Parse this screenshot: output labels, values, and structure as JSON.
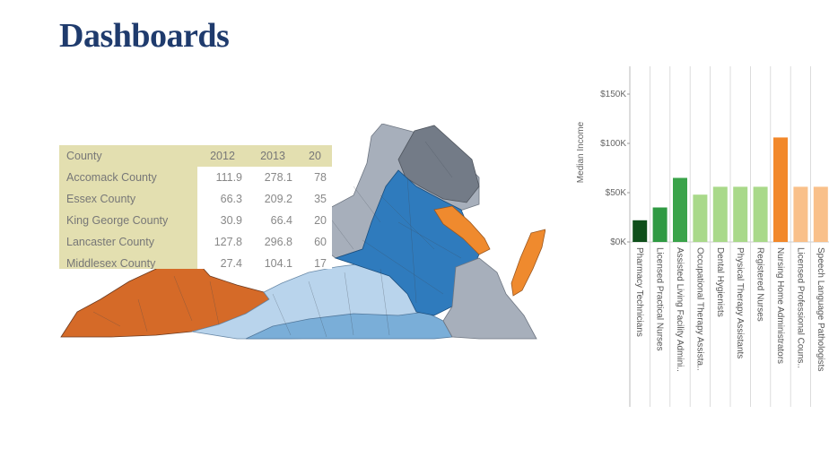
{
  "slide": {
    "title": "Dashboards"
  },
  "table": {
    "columns": [
      "County",
      "2012",
      "2013",
      "20"
    ],
    "rows": [
      {
        "county": "Accomack County",
        "v2012": "111.9",
        "v2013": "278.1",
        "v2014": "78"
      },
      {
        "county": "Essex County",
        "v2012": "66.3",
        "v2013": "209.2",
        "v2014": "35"
      },
      {
        "county": "King George County",
        "v2012": "30.9",
        "v2013": "66.4",
        "v2014": "20"
      },
      {
        "county": "Lancaster County",
        "v2012": "127.8",
        "v2013": "296.8",
        "v2014": "60"
      },
      {
        "county": "Middlesex County",
        "v2012": "27.4",
        "v2013": "104.1",
        "v2014": "17"
      }
    ]
  },
  "map": {
    "colors": {
      "orange": "#d56a28",
      "blue_dark": "#2f7bbd",
      "blue_mid": "#7aaed8",
      "blue_light": "#b9d4ec",
      "gray": "#a7afbb",
      "gray_dark": "#737b87",
      "ocean_orange": "#ef8a2e"
    }
  },
  "chart_data": {
    "type": "bar",
    "ylabel": "Median Income",
    "ylim": [
      0,
      160000
    ],
    "yticks": [
      {
        "value": 0,
        "label": "$0K"
      },
      {
        "value": 50000,
        "label": "$50K"
      },
      {
        "value": 100000,
        "label": "$100K"
      },
      {
        "value": 150000,
        "label": "$150K"
      }
    ],
    "categories": [
      "Pharmacy Technicians",
      "Licensed Practical Nurses",
      "Assisted Living Facility Admini..",
      "Occupational Therapy Assista..",
      "Dental Hygienists",
      "Physical Therapy Assistants",
      "Registered Nurses",
      "Nursing Home Administrators",
      "Licensed Professional Couns..",
      "Speech Language Pathologists"
    ],
    "values": [
      22000,
      35000,
      65000,
      48000,
      56000,
      56000,
      56000,
      106000,
      56000,
      56000
    ],
    "colors": [
      "#0e4f1a",
      "#2f9a43",
      "#3aa34a",
      "#a9d98a",
      "#a9d98a",
      "#a9d98a",
      "#a9d98a",
      "#f2882a",
      "#f9c08a",
      "#f9c08a"
    ],
    "grid": false
  }
}
